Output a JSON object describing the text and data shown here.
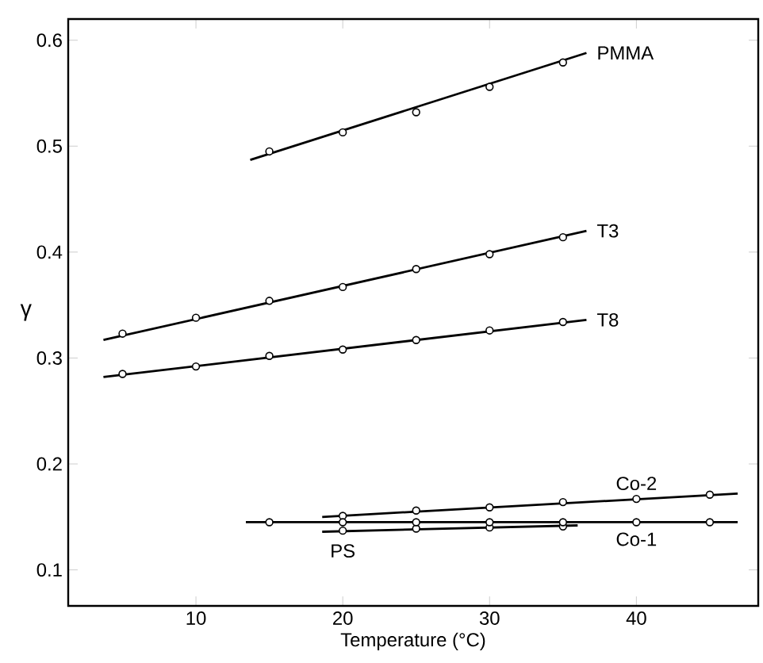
{
  "chart_data": {
    "type": "scatter",
    "xlabel": "Temperature (°C)",
    "ylabel": "γ",
    "xlim": [
      1.3,
      48.3
    ],
    "ylim": [
      0.066,
      0.62
    ],
    "xticks": [
      10,
      20,
      30,
      40
    ],
    "yticks": [
      {
        "value": 0.1,
        "label": "0.1"
      },
      {
        "value": 0.2,
        "label": "0.2"
      },
      {
        "value": 0.3,
        "label": "0.3"
      },
      {
        "value": 0.4,
        "label": "0.4"
      },
      {
        "value": 0.5,
        "label": "0.5"
      },
      {
        "value": 0.6,
        "label": "0.6"
      }
    ],
    "grid": false,
    "legend": false,
    "series": [
      {
        "name": "PMMA",
        "marker": "circle",
        "color": "#000000",
        "x": [
          15,
          20,
          25,
          30,
          35
        ],
        "values": [
          0.495,
          0.513,
          0.532,
          0.556,
          0.579
        ]
      },
      {
        "type": "line",
        "marker": "none",
        "color": "#000000",
        "x": [
          13.7,
          36.6
        ],
        "values": [
          0.487,
          0.588
        ]
      },
      {
        "name": "T3",
        "marker": "circle",
        "color": "#000000",
        "x": [
          5,
          10,
          15,
          20,
          25,
          30,
          35
        ],
        "values": [
          0.323,
          0.338,
          0.354,
          0.367,
          0.384,
          0.398,
          0.414
        ]
      },
      {
        "type": "line",
        "marker": "none",
        "color": "#000000",
        "x": [
          3.7,
          36.6
        ],
        "values": [
          0.317,
          0.42
        ]
      },
      {
        "name": "T8",
        "marker": "circle",
        "color": "#000000",
        "x": [
          5,
          10,
          15,
          20,
          25,
          30,
          35
        ],
        "values": [
          0.285,
          0.292,
          0.302,
          0.308,
          0.317,
          0.326,
          0.334
        ]
      },
      {
        "type": "line",
        "marker": "none",
        "color": "#000000",
        "x": [
          3.7,
          36.6
        ],
        "values": [
          0.282,
          0.336
        ]
      },
      {
        "name": "Co-2",
        "marker": "circle",
        "color": "#000000",
        "x": [
          20,
          25,
          30,
          35,
          40,
          45
        ],
        "values": [
          0.151,
          0.156,
          0.159,
          0.164,
          0.167,
          0.171
        ]
      },
      {
        "type": "line",
        "marker": "none",
        "color": "#000000",
        "x": [
          18.6,
          46.9
        ],
        "values": [
          0.15,
          0.172
        ]
      },
      {
        "name": "PS",
        "marker": "circle",
        "color": "#000000",
        "x": [
          20,
          25,
          30,
          35
        ],
        "values": [
          0.137,
          0.139,
          0.14,
          0.141
        ]
      },
      {
        "type": "line",
        "marker": "none",
        "color": "#000000",
        "x": [
          18.6,
          36
        ],
        "values": [
          0.136,
          0.142
        ]
      },
      {
        "name": "Co-1",
        "marker": "circle",
        "color": "#000000",
        "x": [
          15,
          20,
          25,
          30,
          35,
          40,
          45
        ],
        "values": [
          0.145,
          0.145,
          0.145,
          0.145,
          0.145,
          0.145,
          0.145
        ]
      },
      {
        "type": "line",
        "marker": "none",
        "color": "#000000",
        "x": [
          13.4,
          46.9
        ],
        "values": [
          0.145,
          0.145
        ]
      }
    ]
  }
}
